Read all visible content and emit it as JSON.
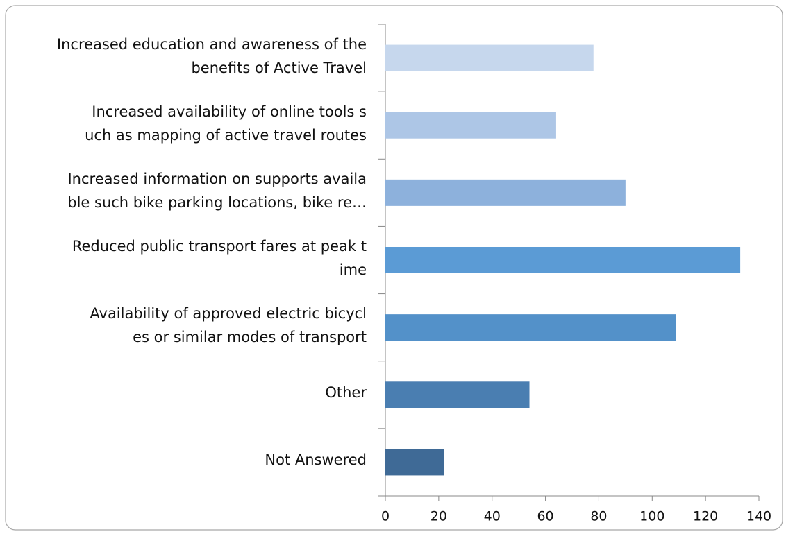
{
  "chart_data": {
    "type": "hbar",
    "categories": [
      "Increased education and awareness of the\nbenefits of Active Travel",
      "Increased availability of online tools s\nuch as mapping of active travel routes",
      "Increased information on supports availa\nble such bike parking locations, bike re…",
      "Reduced public transport fares at peak t\nime",
      "Availability of approved electric bicycl\nes or similar modes of transport",
      "Other",
      "Not Answered"
    ],
    "values": [
      78,
      64,
      90,
      133,
      109,
      54,
      22
    ],
    "colors": [
      "#c6d7ed",
      "#adc6e6",
      "#8db1dc",
      "#5b9bd5",
      "#5391c9",
      "#4a7eb1",
      "#3f6a96"
    ],
    "xlim": [
      0,
      140
    ],
    "xticks": [
      0,
      20,
      40,
      60,
      80,
      100,
      120,
      140
    ],
    "grid": false
  }
}
